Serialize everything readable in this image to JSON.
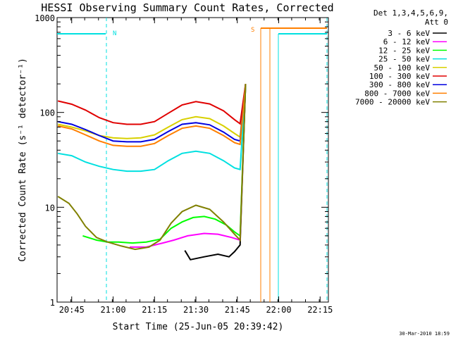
{
  "chart_data": {
    "type": "line",
    "title": "HESSI Observing Summary Count Rates, Corrected",
    "xlabel": "Start Time (25-Jun-05 20:39:42)",
    "ylabel": "Corrected Count Rate (s⁻¹ detector⁻¹)",
    "y_scale": "log",
    "ylim": [
      1,
      1000
    ],
    "xlim": [
      "20:39:42",
      "22:18"
    ],
    "x_ticks": [
      "20:45",
      "21:00",
      "21:15",
      "21:30",
      "21:45",
      "22:00",
      "22:15"
    ],
    "y_ticks": [
      "1",
      "10",
      "100",
      "1000"
    ],
    "legend_header": [
      "Det 1,3,4,5,6,9,",
      "Att 0"
    ],
    "legend_position": "right",
    "annotations": [
      "N",
      "S"
    ],
    "footer_date": "30-Mar-2010 18:59",
    "series": [
      {
        "name": "3 - 6 keV",
        "color": "#000000",
        "points": [
          [
            "21:26",
            3.5
          ],
          [
            "21:28",
            2.8
          ],
          [
            "21:33",
            3.0
          ],
          [
            "21:38",
            3.2
          ],
          [
            "21:42",
            3.0
          ],
          [
            "21:44",
            3.4
          ],
          [
            "21:46",
            4.0
          ],
          [
            "21:48",
            200
          ]
        ]
      },
      {
        "name": "6 - 12 keV",
        "color": "#ff00ff",
        "points": [
          [
            "21:06",
            3.8
          ],
          [
            "21:12",
            3.8
          ],
          [
            "21:18",
            4.2
          ],
          [
            "21:22",
            4.5
          ],
          [
            "21:27",
            5.0
          ],
          [
            "21:33",
            5.3
          ],
          [
            "21:38",
            5.2
          ],
          [
            "21:43",
            4.8
          ],
          [
            "21:46",
            4.5
          ],
          [
            "21:48",
            200
          ]
        ]
      },
      {
        "name": "12 - 25 keV",
        "color": "#00ff00",
        "points": [
          [
            "20:49",
            5.0
          ],
          [
            "20:54",
            4.5
          ],
          [
            "20:58",
            4.3
          ],
          [
            "21:02",
            4.3
          ],
          [
            "21:07",
            4.2
          ],
          [
            "21:12",
            4.3
          ],
          [
            "21:17",
            4.6
          ],
          [
            "21:21",
            6.0
          ],
          [
            "21:25",
            7.0
          ],
          [
            "21:29",
            7.8
          ],
          [
            "21:33",
            8.0
          ],
          [
            "21:37",
            7.5
          ],
          [
            "21:41",
            6.5
          ],
          [
            "21:44",
            5.5
          ],
          [
            "21:46",
            5.0
          ],
          [
            "21:48",
            200
          ]
        ]
      },
      {
        "name": "25 - 50 keV",
        "color": "#00e0e0",
        "points": [
          [
            "20:40",
            37
          ],
          [
            "20:45",
            35
          ],
          [
            "20:50",
            30
          ],
          [
            "20:55",
            27
          ],
          [
            "21:00",
            25
          ],
          [
            "21:05",
            24
          ],
          [
            "21:10",
            24
          ],
          [
            "21:15",
            25
          ],
          [
            "21:20",
            31
          ],
          [
            "21:25",
            37
          ],
          [
            "21:30",
            39
          ],
          [
            "21:35",
            37
          ],
          [
            "21:40",
            31
          ],
          [
            "21:44",
            26
          ],
          [
            "21:46",
            25
          ],
          [
            "21:48",
            200
          ]
        ]
      },
      {
        "name": "50 - 100 keV",
        "color": "#d8d000",
        "points": [
          [
            "20:40",
            75
          ],
          [
            "20:45",
            70
          ],
          [
            "20:50",
            64
          ],
          [
            "20:55",
            57
          ],
          [
            "21:00",
            54
          ],
          [
            "21:05",
            53
          ],
          [
            "21:10",
            54
          ],
          [
            "21:15",
            58
          ],
          [
            "21:20",
            70
          ],
          [
            "21:25",
            84
          ],
          [
            "21:30",
            90
          ],
          [
            "21:35",
            86
          ],
          [
            "21:40",
            72
          ],
          [
            "21:44",
            60
          ],
          [
            "21:46",
            55
          ],
          [
            "21:48",
            200
          ]
        ]
      },
      {
        "name": "100 - 300 keV",
        "color": "#e00000",
        "points": [
          [
            "20:40",
            132
          ],
          [
            "20:45",
            122
          ],
          [
            "20:50",
            106
          ],
          [
            "20:55",
            88
          ],
          [
            "21:00",
            78
          ],
          [
            "21:05",
            75
          ],
          [
            "21:10",
            75
          ],
          [
            "21:15",
            80
          ],
          [
            "21:20",
            98
          ],
          [
            "21:25",
            120
          ],
          [
            "21:30",
            130
          ],
          [
            "21:35",
            123
          ],
          [
            "21:40",
            104
          ],
          [
            "21:44",
            84
          ],
          [
            "21:46",
            76
          ],
          [
            "21:48",
            200
          ]
        ]
      },
      {
        "name": "300 - 800 keV",
        "color": "#0000e0",
        "points": [
          [
            "20:40",
            80
          ],
          [
            "20:45",
            75
          ],
          [
            "20:50",
            66
          ],
          [
            "20:55",
            57
          ],
          [
            "21:00",
            50
          ],
          [
            "21:05",
            49
          ],
          [
            "21:10",
            49
          ],
          [
            "21:15",
            52
          ],
          [
            "21:20",
            63
          ],
          [
            "21:25",
            75
          ],
          [
            "21:30",
            78
          ],
          [
            "21:35",
            74
          ],
          [
            "21:40",
            62
          ],
          [
            "21:44",
            52
          ],
          [
            "21:46",
            50
          ],
          [
            "21:48",
            200
          ]
        ]
      },
      {
        "name": "800 - 7000 keV",
        "color": "#ff7f00",
        "points": [
          [
            "20:40",
            72
          ],
          [
            "20:45",
            67
          ],
          [
            "20:50",
            58
          ],
          [
            "20:55",
            50
          ],
          [
            "21:00",
            45
          ],
          [
            "21:05",
            44
          ],
          [
            "21:10",
            44
          ],
          [
            "21:15",
            47
          ],
          [
            "21:20",
            57
          ],
          [
            "21:25",
            68
          ],
          [
            "21:30",
            72
          ],
          [
            "21:35",
            68
          ],
          [
            "21:40",
            57
          ],
          [
            "21:44",
            48
          ],
          [
            "21:46",
            46
          ],
          [
            "21:48",
            200
          ]
        ]
      },
      {
        "name": "7000 - 20000 keV",
        "color": "#808000",
        "points": [
          [
            "20:40",
            13
          ],
          [
            "20:44",
            11
          ],
          [
            "20:47",
            8.5
          ],
          [
            "20:50",
            6.3
          ],
          [
            "20:54",
            4.8
          ],
          [
            "20:58",
            4.3
          ],
          [
            "21:03",
            3.9
          ],
          [
            "21:08",
            3.6
          ],
          [
            "21:13",
            3.8
          ],
          [
            "21:17",
            4.5
          ],
          [
            "21:21",
            6.8
          ],
          [
            "21:25",
            9.0
          ],
          [
            "21:30",
            10.5
          ],
          [
            "21:35",
            9.5
          ],
          [
            "21:40",
            7.0
          ],
          [
            "21:44",
            5.2
          ],
          [
            "21:46",
            4.5
          ],
          [
            "21:48",
            200
          ]
        ]
      }
    ]
  }
}
